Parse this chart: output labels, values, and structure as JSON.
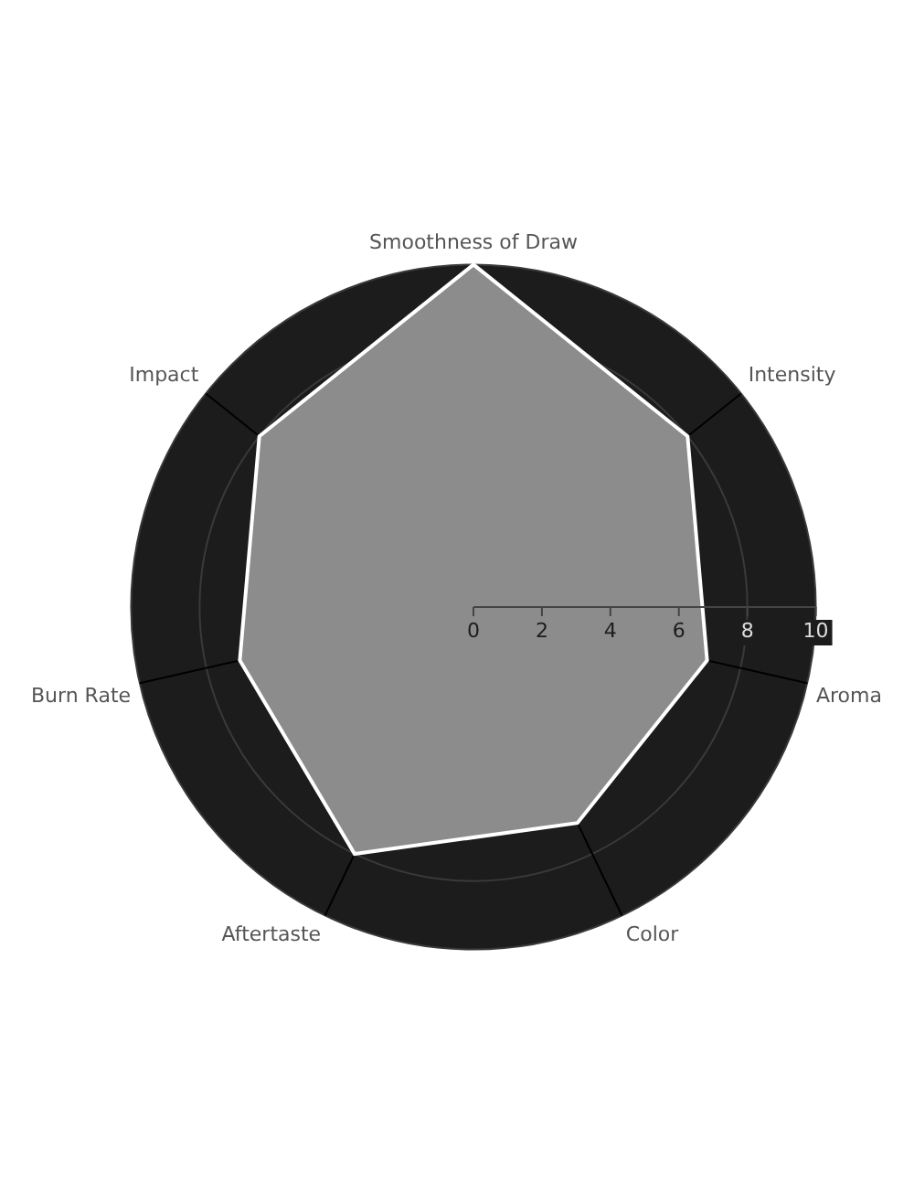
{
  "chart_data": {
    "type": "radar",
    "categories": [
      "Smoothness of Draw",
      "Intensity",
      "Aroma",
      "Color",
      "Aftertaste",
      "Burn Rate",
      "Impact"
    ],
    "series": [
      {
        "color": "#8c8c8c",
        "values": [
          10,
          8,
          7,
          7,
          8,
          7,
          8
        ]
      }
    ],
    "ylim": [
      0,
      10
    ],
    "yticks": [
      0,
      2,
      4,
      6,
      8,
      10
    ],
    "grid": true
  }
}
